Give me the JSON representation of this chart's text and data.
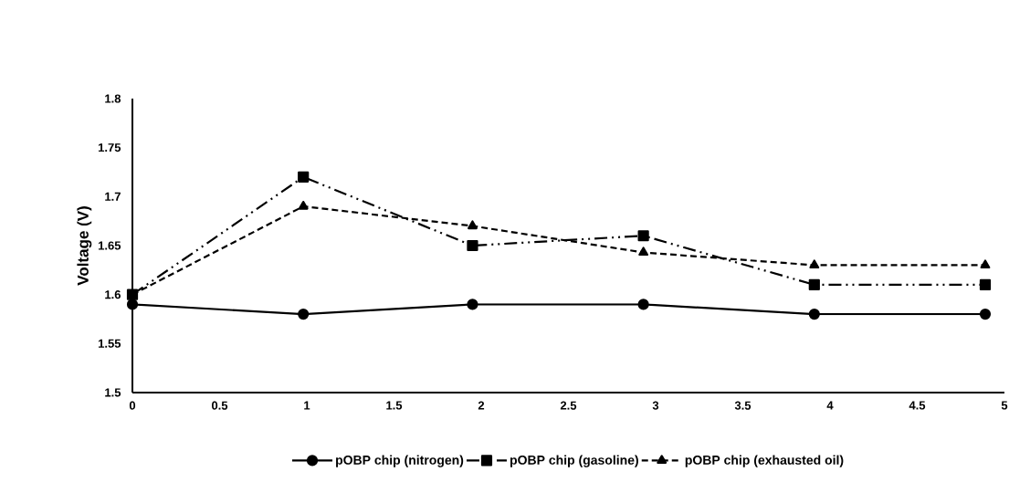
{
  "chart_data": {
    "type": "line",
    "ylabel": "Voltage (V)",
    "xlim": [
      0,
      5
    ],
    "xticks": [
      0,
      0.5,
      1,
      1.5,
      2,
      2.5,
      3,
      3.5,
      4,
      4.5,
      5
    ],
    "ylim": [
      1.5,
      1.8
    ],
    "yticks": [
      1.5,
      1.55,
      1.6,
      1.65,
      1.7,
      1.75,
      1.8
    ],
    "grid": false,
    "legend": "bottom",
    "series": [
      {
        "name": "pOBP chip (nitrogen)",
        "color": "#000000",
        "marker": "circle",
        "line_style": "solid",
        "x": [
          0,
          0.98,
          1.95,
          2.93,
          3.91,
          4.89
        ],
        "values": [
          1.59,
          1.58,
          1.59,
          1.59,
          1.58,
          1.58
        ]
      },
      {
        "name": "pOBP chip (gasoline)",
        "color": "#000000",
        "marker": "square",
        "line_style": "dashdotdot",
        "x": [
          0,
          0.98,
          1.95,
          2.93,
          3.91,
          4.89
        ],
        "values": [
          1.6,
          1.72,
          1.65,
          1.66,
          1.61,
          1.61
        ]
      },
      {
        "name": "pOBP chip (exhausted oil)",
        "color": "#000000",
        "marker": "triangle",
        "line_style": "dashed",
        "x": [
          0,
          0.98,
          1.95,
          2.93,
          3.91,
          4.89
        ],
        "values": [
          1.6,
          1.69,
          1.67,
          1.643,
          1.63,
          1.63
        ]
      }
    ]
  }
}
